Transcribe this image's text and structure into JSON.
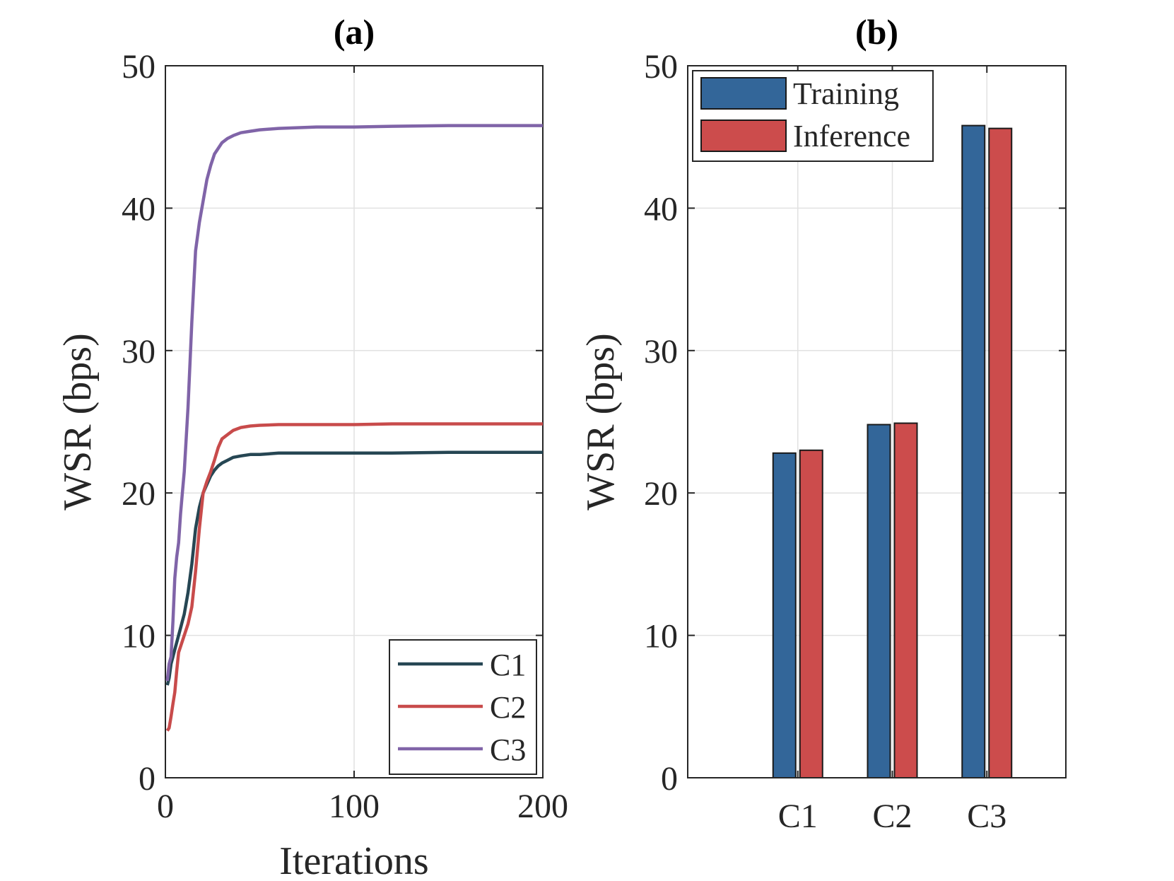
{
  "chart_data": [
    {
      "type": "line",
      "panel": "(a)",
      "title": "(a)",
      "xlabel": "Iterations",
      "ylabel": "WSR (bps)",
      "xlim": [
        0,
        200
      ],
      "ylim": [
        0,
        50
      ],
      "xticks": [
        0,
        100,
        200
      ],
      "yticks": [
        0,
        10,
        20,
        30,
        40,
        50
      ],
      "grid": true,
      "legend_position": "bottom-right",
      "series": [
        {
          "name": "C1",
          "color": "#264653",
          "x": [
            1,
            2,
            3,
            4,
            5,
            6,
            7,
            8,
            9,
            10,
            12,
            14,
            16,
            18,
            20,
            22,
            24,
            26,
            28,
            30,
            33,
            36,
            40,
            45,
            50,
            60,
            70,
            80,
            100,
            120,
            150,
            200
          ],
          "y": [
            6.5,
            7.0,
            8.0,
            8.5,
            9.0,
            9.5,
            10.0,
            10.5,
            11.0,
            11.5,
            13.0,
            15.0,
            17.5,
            19.0,
            20.0,
            20.6,
            21.2,
            21.6,
            21.9,
            22.1,
            22.3,
            22.5,
            22.6,
            22.7,
            22.7,
            22.8,
            22.8,
            22.8,
            22.8,
            22.8,
            22.85,
            22.85
          ]
        },
        {
          "name": "C2",
          "color": "#c84b4b",
          "x": [
            1,
            2,
            3,
            4,
            5,
            6,
            7,
            8,
            10,
            12,
            14,
            16,
            18,
            20,
            22,
            24,
            26,
            28,
            30,
            33,
            36,
            40,
            45,
            50,
            60,
            70,
            80,
            100,
            120,
            150,
            200
          ],
          "y": [
            3.3,
            3.5,
            4.3,
            5.2,
            6.0,
            7.5,
            8.8,
            9.2,
            10.0,
            10.8,
            12.0,
            14.5,
            17.5,
            20.0,
            20.8,
            21.5,
            22.3,
            23.2,
            23.8,
            24.1,
            24.4,
            24.6,
            24.7,
            24.75,
            24.8,
            24.8,
            24.8,
            24.8,
            24.85,
            24.85,
            24.85
          ]
        },
        {
          "name": "C3",
          "color": "#8064a8",
          "x": [
            1,
            2,
            3,
            4,
            5,
            6,
            7,
            8,
            9,
            10,
            12,
            14,
            16,
            18,
            20,
            22,
            24,
            26,
            28,
            30,
            33,
            36,
            40,
            45,
            50,
            60,
            70,
            80,
            100,
            120,
            150,
            200
          ],
          "y": [
            6.8,
            8.0,
            8.5,
            11.0,
            14.0,
            15.5,
            16.5,
            18.5,
            20.0,
            21.5,
            26.0,
            32.0,
            37.0,
            39.0,
            40.5,
            42.0,
            43.0,
            43.8,
            44.2,
            44.6,
            44.9,
            45.1,
            45.3,
            45.4,
            45.5,
            45.6,
            45.65,
            45.7,
            45.7,
            45.75,
            45.8,
            45.8
          ]
        }
      ]
    },
    {
      "type": "bar",
      "panel": "(b)",
      "title": "(b)",
      "xlabel": "",
      "ylabel": "WSR (bps)",
      "ylim": [
        0,
        50
      ],
      "yticks": [
        0,
        10,
        20,
        30,
        40,
        50
      ],
      "grid": true,
      "legend_position": "top-left",
      "categories": [
        "C1",
        "C2",
        "C3"
      ],
      "series": [
        {
          "name": "Training",
          "color": "#336699",
          "values": [
            22.8,
            24.8,
            45.8
          ]
        },
        {
          "name": "Inference",
          "color": "#cc4c4c",
          "values": [
            23.0,
            24.9,
            45.6
          ]
        }
      ]
    }
  ]
}
